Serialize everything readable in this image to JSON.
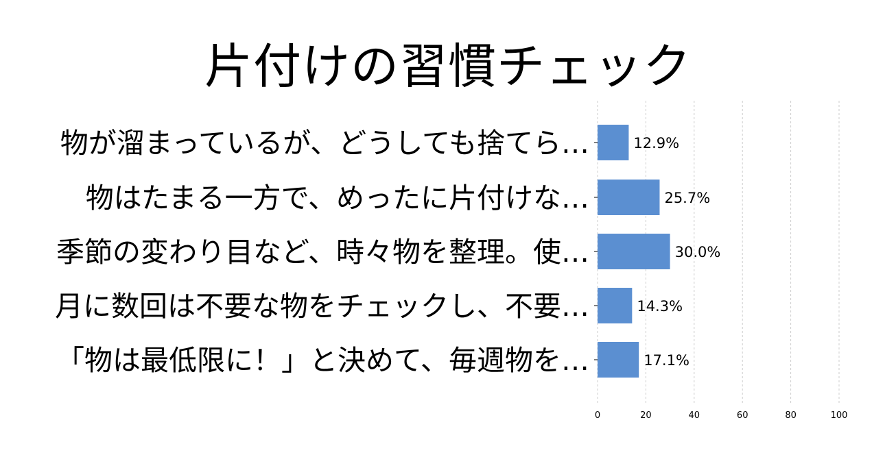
{
  "chart_data": {
    "type": "bar",
    "orientation": "horizontal",
    "title": "片付けの習慣チェック",
    "categories": [
      "物が溜まっているが、どうしても捨てら…",
      "物はたまる一方で、めったに片付けな…",
      "季節の変わり目など、時々物を整理。使…",
      "月に数回は不要な物をチェックし、不要…",
      "「物は最低限に！」と決めて、毎週物を…"
    ],
    "values": [
      12.9,
      25.7,
      30.0,
      14.3,
      17.1
    ],
    "value_labels": [
      "12.9%",
      "25.7%",
      "30.0%",
      "14.3%",
      "17.1%"
    ],
    "xlim": [
      0,
      100
    ],
    "xticks": [
      0,
      20,
      40,
      60,
      80,
      100
    ],
    "grid": "vertical-dashed",
    "bar_color": "#5b8fd1",
    "grid_color": "#cccccc"
  }
}
